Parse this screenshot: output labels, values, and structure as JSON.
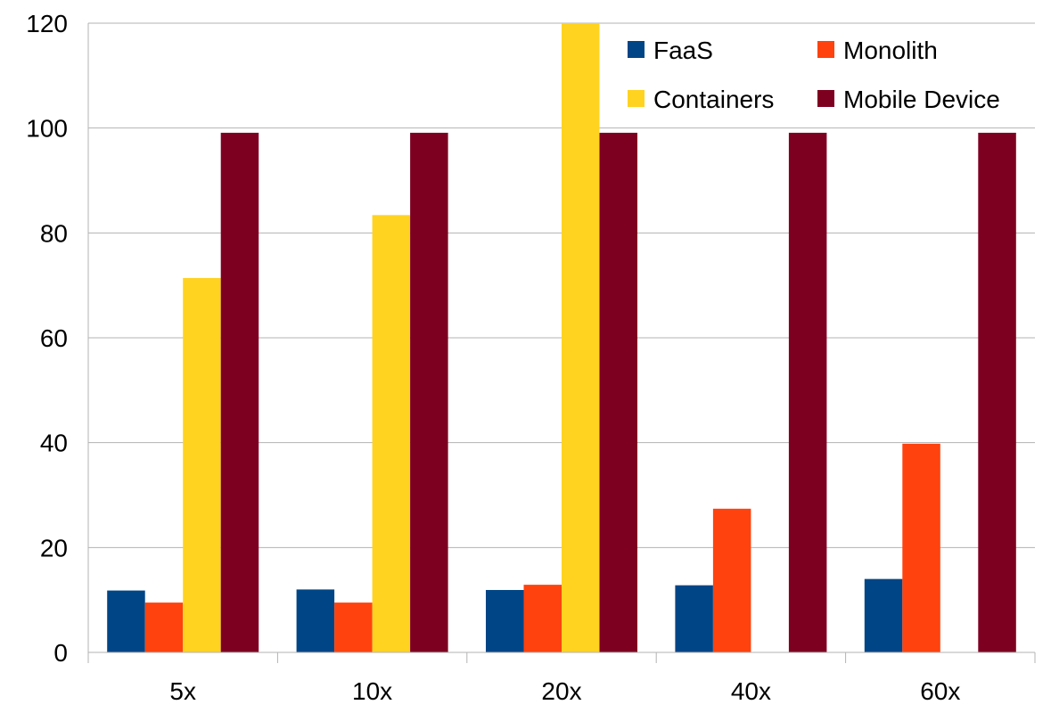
{
  "chart_data": {
    "type": "bar",
    "title": "",
    "xlabel": "",
    "ylabel": "",
    "ylim": [
      0,
      120
    ],
    "yticks": [
      "0",
      "20",
      "40",
      "60",
      "80",
      "100",
      "120"
    ],
    "categories": [
      "5x",
      "10x",
      "20x",
      "40x",
      "60x"
    ],
    "series": [
      {
        "name": "FaaS",
        "color": "#004586",
        "values": [
          11.8,
          12.0,
          11.9,
          12.8,
          14.0
        ]
      },
      {
        "name": "Monolith",
        "color": "#ff420e",
        "values": [
          9.5,
          9.5,
          12.9,
          27.4,
          39.8
        ]
      },
      {
        "name": "Containers",
        "color": "#ffd320",
        "values": [
          71.4,
          83.4,
          120,
          null,
          null
        ]
      },
      {
        "name": "Mobile Device",
        "color": "#7e0021",
        "values": [
          99.1,
          99.1,
          99.1,
          99.1,
          99.1
        ]
      }
    ],
    "grid": true,
    "legend_position": "top-right"
  }
}
